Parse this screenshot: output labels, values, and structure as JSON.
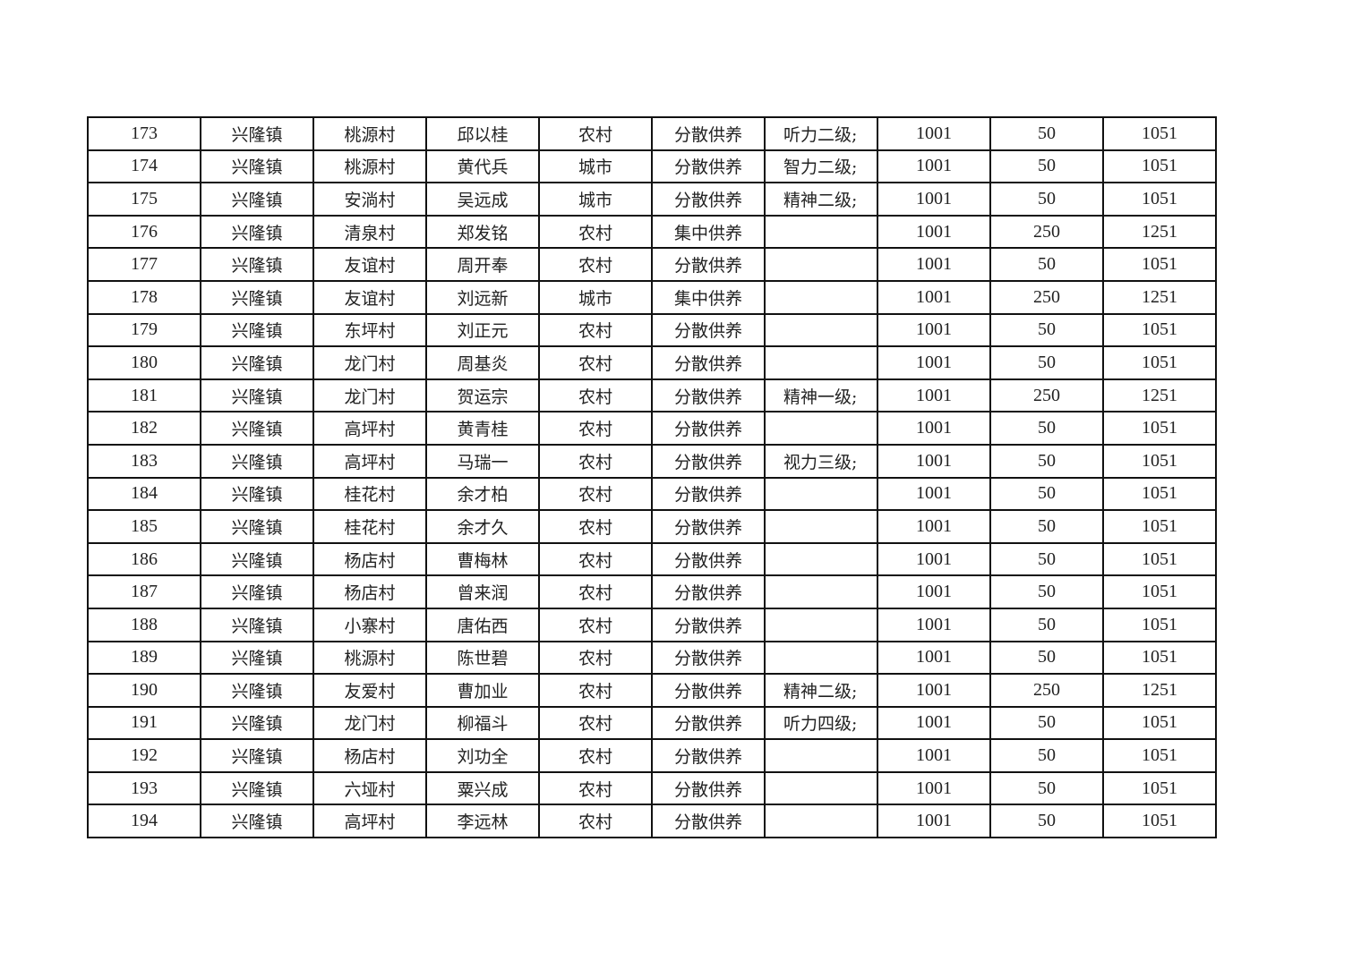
{
  "table": {
    "rows": [
      [
        "173",
        "兴隆镇",
        "桃源村",
        "邱以桂",
        "农村",
        "分散供养",
        "听力二级;",
        "1001",
        "50",
        "1051"
      ],
      [
        "174",
        "兴隆镇",
        "桃源村",
        "黄代兵",
        "城市",
        "分散供养",
        "智力二级;",
        "1001",
        "50",
        "1051"
      ],
      [
        "175",
        "兴隆镇",
        "安淌村",
        "吴远成",
        "城市",
        "分散供养",
        "精神二级;",
        "1001",
        "50",
        "1051"
      ],
      [
        "176",
        "兴隆镇",
        "清泉村",
        "郑发铭",
        "农村",
        "集中供养",
        "",
        "1001",
        "250",
        "1251"
      ],
      [
        "177",
        "兴隆镇",
        "友谊村",
        "周开奉",
        "农村",
        "分散供养",
        "",
        "1001",
        "50",
        "1051"
      ],
      [
        "178",
        "兴隆镇",
        "友谊村",
        "刘远新",
        "城市",
        "集中供养",
        "",
        "1001",
        "250",
        "1251"
      ],
      [
        "179",
        "兴隆镇",
        "东坪村",
        "刘正元",
        "农村",
        "分散供养",
        "",
        "1001",
        "50",
        "1051"
      ],
      [
        "180",
        "兴隆镇",
        "龙门村",
        "周基炎",
        "农村",
        "分散供养",
        "",
        "1001",
        "50",
        "1051"
      ],
      [
        "181",
        "兴隆镇",
        "龙门村",
        "贺运宗",
        "农村",
        "分散供养",
        "精神一级;",
        "1001",
        "250",
        "1251"
      ],
      [
        "182",
        "兴隆镇",
        "高坪村",
        "黄青桂",
        "农村",
        "分散供养",
        "",
        "1001",
        "50",
        "1051"
      ],
      [
        "183",
        "兴隆镇",
        "高坪村",
        "马瑞一",
        "农村",
        "分散供养",
        "视力三级;",
        "1001",
        "50",
        "1051"
      ],
      [
        "184",
        "兴隆镇",
        "桂花村",
        "余才柏",
        "农村",
        "分散供养",
        "",
        "1001",
        "50",
        "1051"
      ],
      [
        "185",
        "兴隆镇",
        "桂花村",
        "余才久",
        "农村",
        "分散供养",
        "",
        "1001",
        "50",
        "1051"
      ],
      [
        "186",
        "兴隆镇",
        "杨店村",
        "曹梅林",
        "农村",
        "分散供养",
        "",
        "1001",
        "50",
        "1051"
      ],
      [
        "187",
        "兴隆镇",
        "杨店村",
        "曾来润",
        "农村",
        "分散供养",
        "",
        "1001",
        "50",
        "1051"
      ],
      [
        "188",
        "兴隆镇",
        "小寨村",
        "唐佑西",
        "农村",
        "分散供养",
        "",
        "1001",
        "50",
        "1051"
      ],
      [
        "189",
        "兴隆镇",
        "桃源村",
        "陈世碧",
        "农村",
        "分散供养",
        "",
        "1001",
        "50",
        "1051"
      ],
      [
        "190",
        "兴隆镇",
        "友爱村",
        "曹加业",
        "农村",
        "分散供养",
        "精神二级;",
        "1001",
        "250",
        "1251"
      ],
      [
        "191",
        "兴隆镇",
        "龙门村",
        "柳福斗",
        "农村",
        "分散供养",
        "听力四级;",
        "1001",
        "50",
        "1051"
      ],
      [
        "192",
        "兴隆镇",
        "杨店村",
        "刘功全",
        "农村",
        "分散供养",
        "",
        "1001",
        "50",
        "1051"
      ],
      [
        "193",
        "兴隆镇",
        "六垭村",
        "粟兴成",
        "农村",
        "分散供养",
        "",
        "1001",
        "50",
        "1051"
      ],
      [
        "194",
        "兴隆镇",
        "高坪村",
        "李远林",
        "农村",
        "分散供养",
        "",
        "1001",
        "50",
        "1051"
      ]
    ]
  }
}
